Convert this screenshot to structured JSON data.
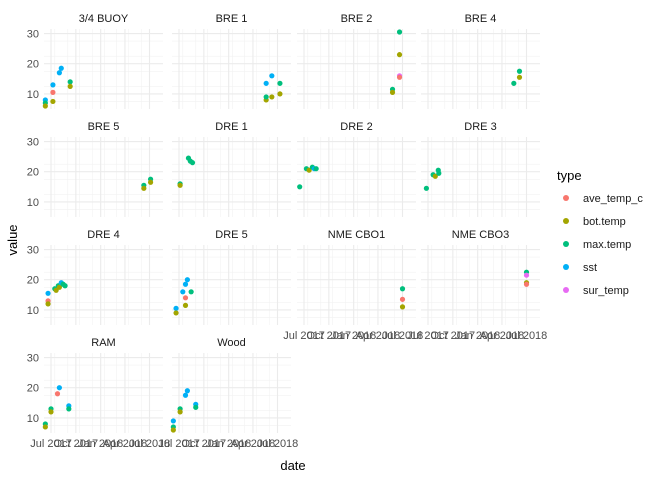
{
  "chart_data": {
    "type": "scatter",
    "facet_layout": "wrap-4-columns",
    "xlabel": "date",
    "ylabel": "value",
    "x_tick_labels": [
      "Jul 2017",
      "Oct 2017",
      "Jan 2018",
      "Apr 2018",
      "Jul 2018"
    ],
    "x_tick_dates": [
      "2017-07-01",
      "2017-10-01",
      "2018-01-01",
      "2018-04-01",
      "2018-07-01"
    ],
    "xlim": [
      "2017-06-05",
      "2018-08-20"
    ],
    "y_ticks": [
      10,
      20,
      30
    ],
    "ylim": [
      5,
      31.5
    ],
    "grid": true,
    "legend": {
      "title": "type",
      "placement": "right",
      "entries": [
        {
          "name": "ave_temp_c",
          "color": "#F8766D"
        },
        {
          "name": "bot.temp",
          "color": "#A3A500"
        },
        {
          "name": "max.temp",
          "color": "#00BF7D"
        },
        {
          "name": "sst",
          "color": "#00B0F6"
        },
        {
          "name": "sur_temp",
          "color": "#E76BF3"
        }
      ]
    },
    "facets": [
      {
        "title": "3/4 BUOY",
        "points": [
          {
            "type": "sst",
            "x": "2017-06-10",
            "y": 8
          },
          {
            "type": "max.temp",
            "x": "2017-06-10",
            "y": 7
          },
          {
            "type": "bot.temp",
            "x": "2017-06-10",
            "y": 6
          },
          {
            "type": "sst",
            "x": "2017-07-08",
            "y": 13
          },
          {
            "type": "ave_temp_c",
            "x": "2017-07-08",
            "y": 10.5
          },
          {
            "type": "bot.temp",
            "x": "2017-07-08",
            "y": 7.5
          },
          {
            "type": "sst",
            "x": "2017-08-01",
            "y": 17
          },
          {
            "type": "sst",
            "x": "2017-08-08",
            "y": 18.5
          },
          {
            "type": "max.temp",
            "x": "2017-09-10",
            "y": 14
          },
          {
            "type": "bot.temp",
            "x": "2017-09-10",
            "y": 12.5
          }
        ]
      },
      {
        "title": "BRE 1",
        "points": [
          {
            "type": "sst",
            "x": "2018-05-20",
            "y": 13.5
          },
          {
            "type": "bot.temp",
            "x": "2018-05-20",
            "y": 8
          },
          {
            "type": "max.temp",
            "x": "2018-05-20",
            "y": 9
          },
          {
            "type": "sst",
            "x": "2018-06-10",
            "y": 16
          },
          {
            "type": "bot.temp",
            "x": "2018-06-10",
            "y": 9
          },
          {
            "type": "max.temp",
            "x": "2018-07-10",
            "y": 13.5
          },
          {
            "type": "bot.temp",
            "x": "2018-07-10",
            "y": 10
          }
        ]
      },
      {
        "title": "BRE 2",
        "points": [
          {
            "type": "max.temp",
            "x": "2018-05-25",
            "y": 11.5
          },
          {
            "type": "bot.temp",
            "x": "2018-05-25",
            "y": 10.5
          },
          {
            "type": "max.temp",
            "x": "2018-06-20",
            "y": 30.5
          },
          {
            "type": "bot.temp",
            "x": "2018-06-20",
            "y": 23
          },
          {
            "type": "sur_temp",
            "x": "2018-06-20",
            "y": 16
          },
          {
            "type": "ave_temp_c",
            "x": "2018-06-20",
            "y": 15.5
          }
        ]
      },
      {
        "title": "BRE 4",
        "points": [
          {
            "type": "max.temp",
            "x": "2018-05-15",
            "y": 13.5
          },
          {
            "type": "max.temp",
            "x": "2018-06-05",
            "y": 17.5
          },
          {
            "type": "bot.temp",
            "x": "2018-06-05",
            "y": 15.5
          }
        ]
      },
      {
        "title": "BRE 5",
        "points": [
          {
            "type": "max.temp",
            "x": "2018-06-10",
            "y": 15.5
          },
          {
            "type": "bot.temp",
            "x": "2018-06-10",
            "y": 14.5
          },
          {
            "type": "max.temp",
            "x": "2018-07-05",
            "y": 17.5
          },
          {
            "type": "bot.temp",
            "x": "2018-07-05",
            "y": 16.5
          }
        ]
      },
      {
        "title": "DRE 1",
        "points": [
          {
            "type": "max.temp",
            "x": "2017-07-05",
            "y": 16
          },
          {
            "type": "bot.temp",
            "x": "2017-07-05",
            "y": 15.5
          },
          {
            "type": "max.temp",
            "x": "2017-08-05",
            "y": 24.5
          },
          {
            "type": "max.temp",
            "x": "2017-08-12",
            "y": 23.5
          },
          {
            "type": "max.temp",
            "x": "2017-08-20",
            "y": 23
          }
        ]
      },
      {
        "title": "DRE 2",
        "points": [
          {
            "type": "max.temp",
            "x": "2017-06-15",
            "y": 15
          },
          {
            "type": "max.temp",
            "x": "2017-07-10",
            "y": 21
          },
          {
            "type": "bot.temp",
            "x": "2017-07-20",
            "y": 20.5
          },
          {
            "type": "max.temp",
            "x": "2017-08-01",
            "y": 21.5
          },
          {
            "type": "sst",
            "x": "2017-08-08",
            "y": 21
          },
          {
            "type": "max.temp",
            "x": "2017-08-15",
            "y": 21
          }
        ]
      },
      {
        "title": "DRE 3",
        "points": [
          {
            "type": "max.temp",
            "x": "2017-06-25",
            "y": 14.5
          },
          {
            "type": "max.temp",
            "x": "2017-07-20",
            "y": 19
          },
          {
            "type": "bot.temp",
            "x": "2017-07-28",
            "y": 18.5
          },
          {
            "type": "max.temp",
            "x": "2017-08-08",
            "y": 20.5
          },
          {
            "type": "max.temp",
            "x": "2017-08-10",
            "y": 19.5
          }
        ]
      },
      {
        "title": "DRE 4",
        "points": [
          {
            "type": "sst",
            "x": "2017-06-20",
            "y": 15.5
          },
          {
            "type": "ave_temp_c",
            "x": "2017-06-20",
            "y": 13
          },
          {
            "type": "bot.temp",
            "x": "2017-06-20",
            "y": 12
          },
          {
            "type": "max.temp",
            "x": "2017-07-15",
            "y": 17
          },
          {
            "type": "bot.temp",
            "x": "2017-07-20",
            "y": 16.5
          },
          {
            "type": "max.temp",
            "x": "2017-07-28",
            "y": 18
          },
          {
            "type": "bot.temp",
            "x": "2017-08-01",
            "y": 17.5
          },
          {
            "type": "sst",
            "x": "2017-08-08",
            "y": 19
          },
          {
            "type": "max.temp",
            "x": "2017-08-15",
            "y": 18.5
          },
          {
            "type": "max.temp",
            "x": "2017-08-22",
            "y": 18
          }
        ]
      },
      {
        "title": "DRE 5",
        "points": [
          {
            "type": "sst",
            "x": "2017-06-20",
            "y": 10.5
          },
          {
            "type": "bot.temp",
            "x": "2017-06-20",
            "y": 9
          },
          {
            "type": "sst",
            "x": "2017-07-15",
            "y": 16
          },
          {
            "type": "sst",
            "x": "2017-07-25",
            "y": 18.5
          },
          {
            "type": "ave_temp_c",
            "x": "2017-07-25",
            "y": 14
          },
          {
            "type": "bot.temp",
            "x": "2017-07-25",
            "y": 11.5
          },
          {
            "type": "sst",
            "x": "2017-08-01",
            "y": 20
          },
          {
            "type": "max.temp",
            "x": "2017-08-15",
            "y": 16
          }
        ]
      },
      {
        "title": "NME CBO1",
        "points": [
          {
            "type": "max.temp",
            "x": "2018-07-01",
            "y": 17
          },
          {
            "type": "ave_temp_c",
            "x": "2018-07-01",
            "y": 13.5
          },
          {
            "type": "bot.temp",
            "x": "2018-07-01",
            "y": 11
          }
        ]
      },
      {
        "title": "NME CBO3",
        "points": [
          {
            "type": "max.temp",
            "x": "2018-07-01",
            "y": 22.5
          },
          {
            "type": "sur_temp",
            "x": "2018-07-01",
            "y": 21.5
          },
          {
            "type": "bot.temp",
            "x": "2018-07-01",
            "y": 19
          },
          {
            "type": "ave_temp_c",
            "x": "2018-07-01",
            "y": 18.5
          }
        ]
      },
      {
        "title": "RAM",
        "points": [
          {
            "type": "max.temp",
            "x": "2017-06-10",
            "y": 8
          },
          {
            "type": "bot.temp",
            "x": "2017-06-10",
            "y": 7
          },
          {
            "type": "max.temp",
            "x": "2017-07-01",
            "y": 13
          },
          {
            "type": "bot.temp",
            "x": "2017-07-01",
            "y": 12
          },
          {
            "type": "ave_temp_c",
            "x": "2017-07-25",
            "y": 18
          },
          {
            "type": "sst",
            "x": "2017-08-01",
            "y": 20
          },
          {
            "type": "sst",
            "x": "2017-09-05",
            "y": 14
          },
          {
            "type": "max.temp",
            "x": "2017-09-05",
            "y": 13
          }
        ]
      },
      {
        "title": "Wood",
        "points": [
          {
            "type": "sst",
            "x": "2017-06-10",
            "y": 9
          },
          {
            "type": "max.temp",
            "x": "2017-06-10",
            "y": 7
          },
          {
            "type": "bot.temp",
            "x": "2017-06-10",
            "y": 6
          },
          {
            "type": "max.temp",
            "x": "2017-07-05",
            "y": 13
          },
          {
            "type": "bot.temp",
            "x": "2017-07-05",
            "y": 12
          },
          {
            "type": "sst",
            "x": "2017-07-25",
            "y": 17.5
          },
          {
            "type": "sst",
            "x": "2017-08-01",
            "y": 19
          },
          {
            "type": "sst",
            "x": "2017-09-01",
            "y": 14.5
          },
          {
            "type": "max.temp",
            "x": "2017-09-01",
            "y": 13.5
          }
        ]
      }
    ]
  }
}
